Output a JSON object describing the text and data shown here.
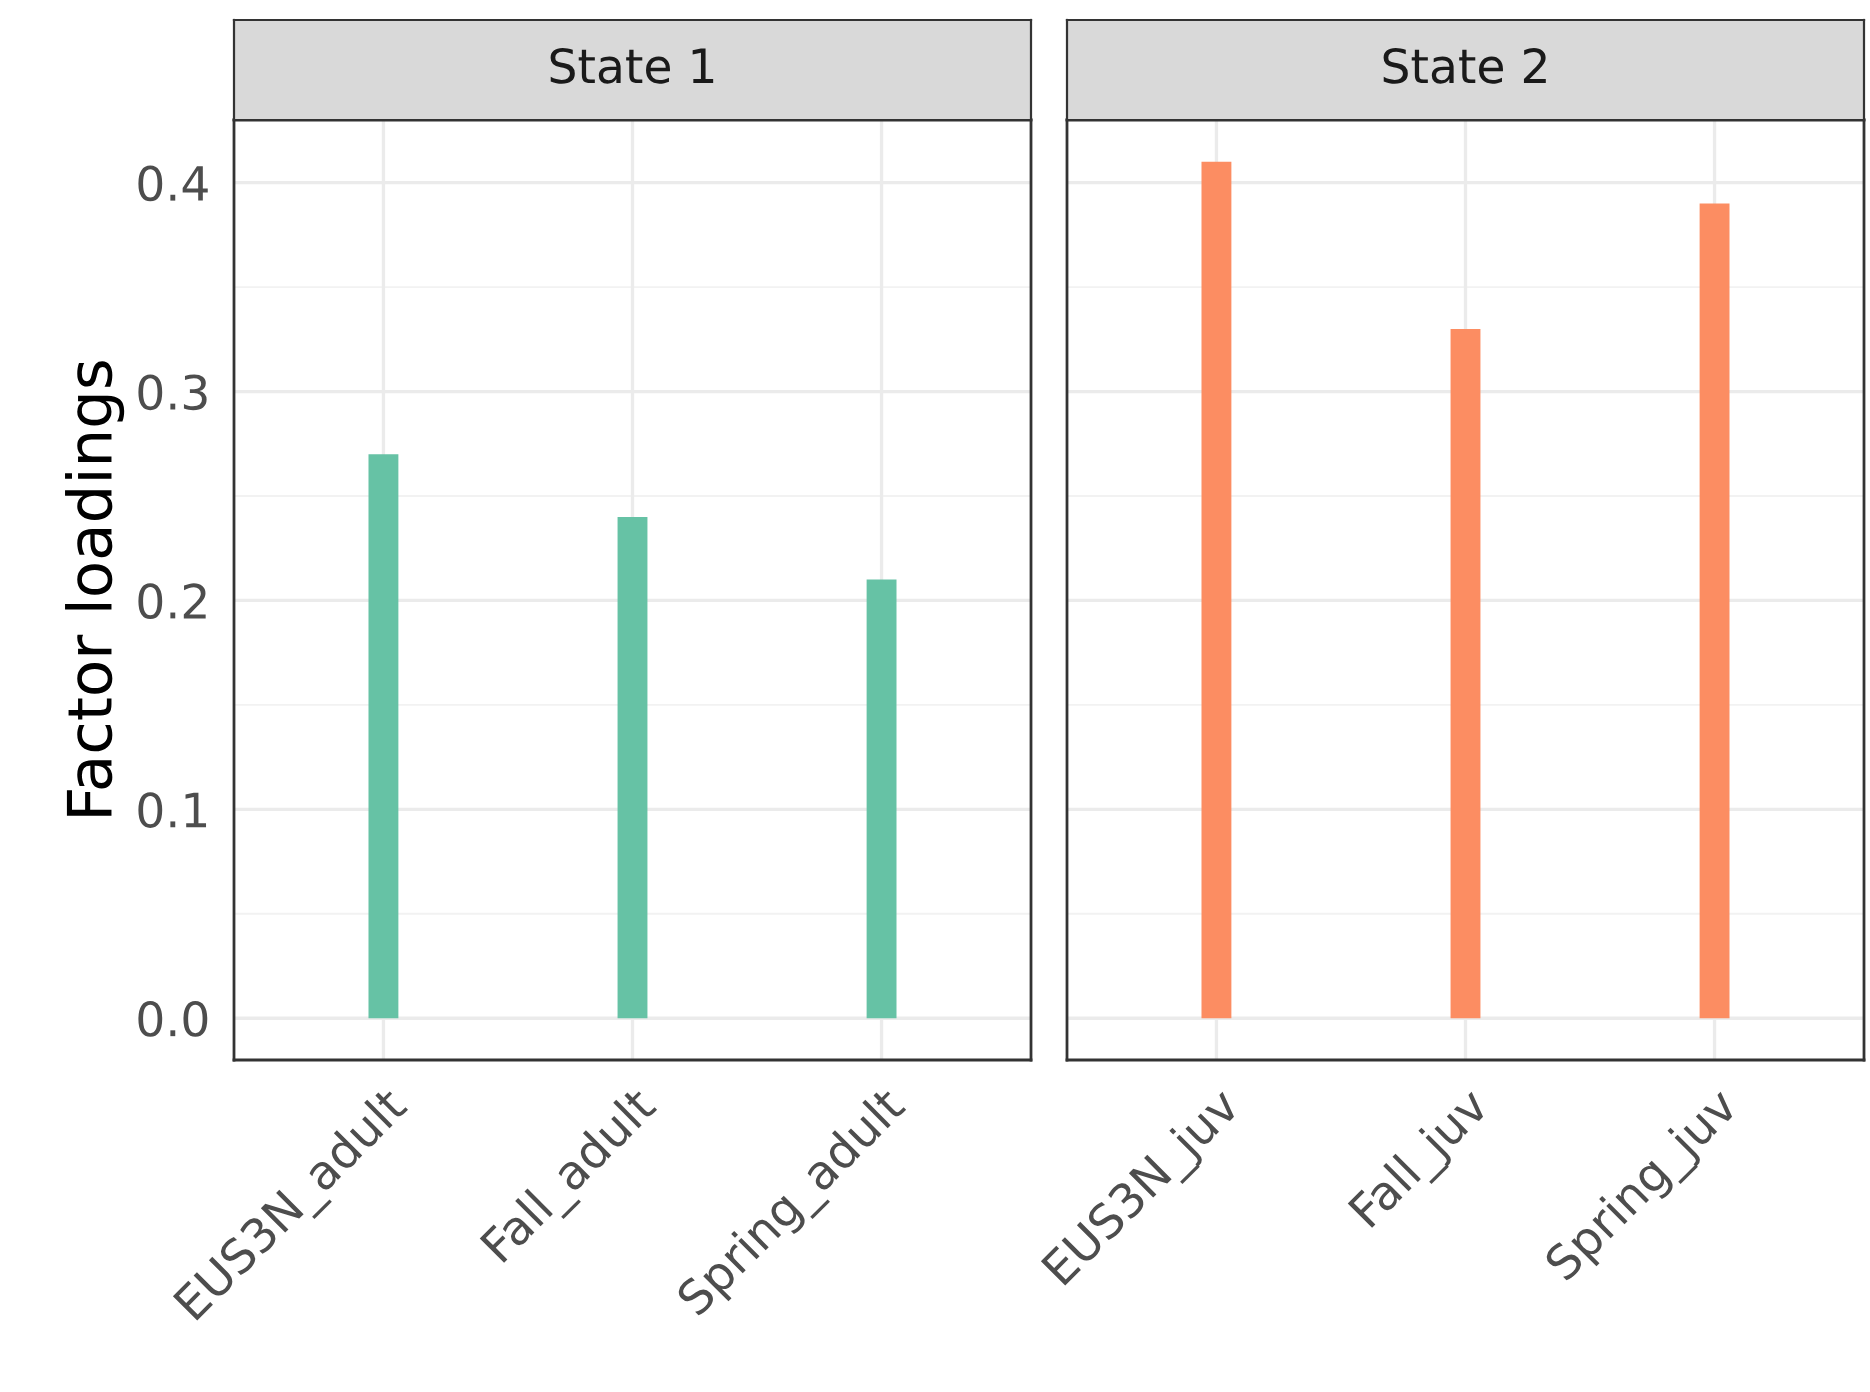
{
  "chart_data": [
    {
      "type": "bar",
      "title": "State 1",
      "ylabel": "Factor loadings",
      "categories": [
        "EUS3N_adult",
        "Fall_adult",
        "Spring_adult"
      ],
      "values": [
        0.27,
        0.24,
        0.21
      ],
      "color": "#66c2a5",
      "ylim": [
        -0.02,
        0.43
      ],
      "yticks": [
        {
          "value": 0,
          "label": "0.0"
        },
        0.1,
        0.2,
        0.3,
        0.4
      ],
      "grid": true
    },
    {
      "type": "bar",
      "title": "State 2",
      "categories": [
        "EUS3N_juv",
        "Fall_juv",
        "Spring_juv"
      ],
      "values": [
        0.41,
        0.33,
        0.39
      ],
      "color": "#fc8d62",
      "ylim": [
        -0.02,
        0.43
      ],
      "yticks": [
        {
          "value": 0,
          "label": null
        },
        {
          "value": 0.1,
          "label": null
        },
        {
          "value": 0.2,
          "label": null
        },
        {
          "value": 0.3,
          "label": null
        },
        {
          "value": 0.4,
          "label": null
        }
      ],
      "grid": true,
      "tick_labels": "x"
    }
  ]
}
